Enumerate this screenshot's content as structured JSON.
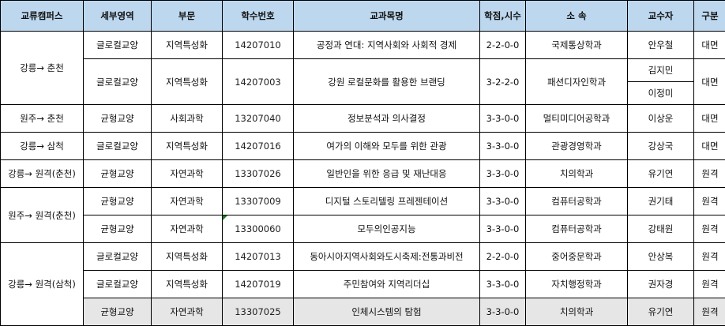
{
  "headers": [
    "교류캠퍼스",
    "세부영역",
    "부문",
    "학수번호",
    "교과목명",
    "학점,시수",
    "소 속",
    "교수자",
    "구분"
  ],
  "groups": [
    {
      "campus": "강릉→ 춘천",
      "rows": [
        {
          "area": "글로컬교양",
          "section": "지역특성화",
          "code": "14207010",
          "title": "공정과 연대: 지역사회와 사회적 경제",
          "credit": "2-2-0-0",
          "dept": "국제통상학과",
          "profs": [
            "안우철"
          ],
          "type": "대면"
        },
        {
          "area": "글로컬교양",
          "section": "지역특성화",
          "code": "14207003",
          "title": "강원 로컬문화를 활용한 브랜딩",
          "credit": "3-2-2-0",
          "dept": "패션디자인학과",
          "profs": [
            "김지민",
            "이정미"
          ],
          "type": "대면"
        }
      ]
    },
    {
      "campus": "원주→ 춘천",
      "rows": [
        {
          "area": "균형교양",
          "section": "사회과학",
          "code": "13207040",
          "title": "정보분석과 의사결정",
          "credit": "3-3-0-0",
          "dept": "멀티미디어공학과",
          "profs": [
            "이상운"
          ],
          "type": "대면"
        }
      ]
    },
    {
      "campus": "강릉→ 삼척",
      "rows": [
        {
          "area": "글로컬교양",
          "section": "지역특성화",
          "code": "14207016",
          "title": "여가의 이해와 모두를 위한 관광",
          "credit": "3-3-0-0",
          "dept": "관광경영학과",
          "profs": [
            "강상국"
          ],
          "type": "대면"
        }
      ]
    },
    {
      "campus": "강릉→ 원격(춘천)",
      "rows": [
        {
          "area": "균형교양",
          "section": "자연과학",
          "code": "13307026",
          "title": "일반인을 위한 응급 및 재난대응",
          "credit": "3-3-0-0",
          "dept": "치의학과",
          "profs": [
            "유기연"
          ],
          "type": "원격"
        }
      ]
    },
    {
      "campus": "원주→ 원격(춘천)",
      "rows": [
        {
          "area": "균형교양",
          "section": "자연과학",
          "code": "13307009",
          "title": "디지털 스토리텔링 프레젠테이션",
          "credit": "3-3-0-0",
          "dept": "컴퓨터공학과",
          "profs": [
            "권기태"
          ],
          "type": "원격"
        },
        {
          "area": "균형교양",
          "section": "자연과학",
          "code": "13300060",
          "title": "모두의인공지능",
          "credit": "3-3-0-0",
          "dept": "컴퓨터공학과",
          "profs": [
            "강태원"
          ],
          "type": "원격"
        }
      ]
    },
    {
      "campus": "강릉→ 원격(삼척)",
      "rows": [
        {
          "area": "글로컬교양",
          "section": "지역특성화",
          "code": "14207013",
          "title": "동아시아지역사회와도시축제:전통과비전",
          "credit": "2-2-0-0",
          "dept": "중어중문학과",
          "profs": [
            "안상복"
          ],
          "type": "원격"
        },
        {
          "area": "글로컬교양",
          "section": "지역특성화",
          "code": "14207019",
          "title": "주민참여와 지역리더십",
          "credit": "3-3-0-0",
          "dept": "자치행정학과",
          "profs": [
            "권자경"
          ],
          "type": "원격"
        },
        {
          "area": "균형교양",
          "section": "자연과학",
          "code": "13307025",
          "title": "인체시스템의 탐험",
          "credit": "3-3-0-0",
          "dept": "치의학과",
          "profs": [
            "유기연"
          ],
          "type": "원격",
          "highlighted": true
        }
      ]
    }
  ],
  "colors": {
    "header_bg": "#bdd7ee",
    "highlight_row": "#e6e6e6",
    "border": "#000000"
  }
}
